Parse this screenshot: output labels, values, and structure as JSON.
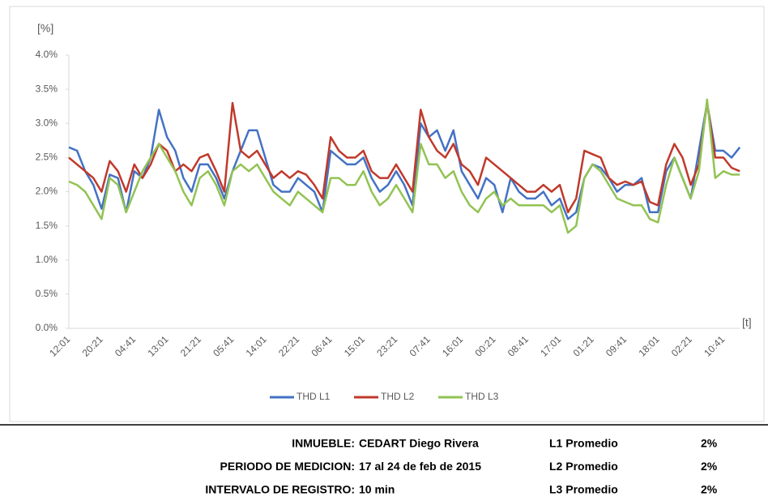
{
  "chart_data": {
    "type": "line",
    "y_label": "[%]",
    "x_label": "[t]",
    "categories": [
      "12:01",
      null,
      null,
      null,
      "20:21",
      null,
      null,
      null,
      "04:41",
      null,
      null,
      null,
      "13:01",
      null,
      null,
      null,
      "21:21",
      null,
      null,
      null,
      "05:41",
      null,
      null,
      null,
      "14:01",
      null,
      null,
      null,
      "22:21",
      null,
      null,
      null,
      "06:41",
      null,
      null,
      null,
      "15:01",
      null,
      null,
      null,
      "23:21",
      null,
      null,
      null,
      "07:41",
      null,
      null,
      null,
      "16:01",
      null,
      null,
      null,
      "00:21",
      null,
      null,
      null,
      "08:41",
      null,
      null,
      null,
      "17:01",
      null,
      null,
      null,
      "01:21",
      null,
      null,
      null,
      "09:41",
      null,
      null,
      null,
      "18:01",
      null,
      null,
      null,
      "02:21",
      null,
      null,
      null,
      "10:41",
      null,
      null
    ],
    "series": [
      {
        "name": "THD L1",
        "color": "#4472c4",
        "values": [
          2.65,
          2.6,
          2.3,
          2.1,
          1.75,
          2.25,
          2.2,
          1.7,
          2.3,
          2.2,
          2.5,
          3.2,
          2.8,
          2.6,
          2.2,
          2.0,
          2.4,
          2.4,
          2.2,
          1.9,
          2.3,
          2.6,
          2.9,
          2.9,
          2.5,
          2.1,
          2.0,
          2.0,
          2.2,
          2.1,
          2.0,
          1.7,
          2.6,
          2.5,
          2.4,
          2.4,
          2.5,
          2.2,
          2.0,
          2.1,
          2.3,
          2.1,
          1.8,
          3.0,
          2.8,
          2.9,
          2.6,
          2.9,
          2.3,
          2.1,
          1.9,
          2.2,
          2.1,
          1.7,
          2.2,
          2.0,
          1.9,
          1.9,
          2.0,
          1.8,
          1.9,
          1.6,
          1.7,
          2.2,
          2.4,
          2.35,
          2.2,
          2.0,
          2.1,
          2.1,
          2.2,
          1.7,
          1.7,
          2.3,
          2.5,
          2.2,
          1.9,
          2.6,
          3.3,
          2.6,
          2.6,
          2.5,
          2.65
        ]
      },
      {
        "name": "THD L2",
        "color": "#c0392b",
        "values": [
          2.5,
          2.4,
          2.3,
          2.2,
          2.0,
          2.45,
          2.3,
          2.0,
          2.4,
          2.2,
          2.4,
          2.7,
          2.6,
          2.3,
          2.4,
          2.3,
          2.5,
          2.55,
          2.3,
          2.0,
          3.3,
          2.6,
          2.5,
          2.6,
          2.4,
          2.2,
          2.3,
          2.2,
          2.3,
          2.25,
          2.1,
          1.9,
          2.8,
          2.6,
          2.5,
          2.5,
          2.6,
          2.3,
          2.2,
          2.2,
          2.4,
          2.2,
          2.0,
          3.2,
          2.8,
          2.6,
          2.5,
          2.7,
          2.4,
          2.3,
          2.1,
          2.5,
          2.4,
          2.3,
          2.2,
          2.1,
          2.0,
          2.0,
          2.1,
          2.0,
          2.1,
          1.7,
          1.9,
          2.6,
          2.55,
          2.5,
          2.2,
          2.1,
          2.15,
          2.1,
          2.15,
          1.85,
          1.8,
          2.4,
          2.7,
          2.5,
          2.1,
          2.4,
          3.3,
          2.5,
          2.5,
          2.35,
          2.3
        ]
      },
      {
        "name": "THD L3",
        "color": "#92c353",
        "values": [
          2.15,
          2.1,
          2.0,
          1.8,
          1.6,
          2.2,
          2.1,
          1.7,
          2.0,
          2.3,
          2.5,
          2.7,
          2.5,
          2.3,
          2.0,
          1.8,
          2.2,
          2.3,
          2.1,
          1.8,
          2.3,
          2.4,
          2.3,
          2.4,
          2.2,
          2.0,
          1.9,
          1.8,
          2.0,
          1.9,
          1.8,
          1.7,
          2.2,
          2.2,
          2.1,
          2.1,
          2.3,
          2.0,
          1.8,
          1.9,
          2.1,
          1.9,
          1.7,
          2.7,
          2.4,
          2.4,
          2.2,
          2.3,
          2.0,
          1.8,
          1.7,
          1.9,
          2.0,
          1.8,
          1.9,
          1.8,
          1.8,
          1.8,
          1.8,
          1.7,
          1.8,
          1.4,
          1.5,
          2.2,
          2.4,
          2.3,
          2.1,
          1.9,
          1.85,
          1.8,
          1.8,
          1.6,
          1.55,
          2.1,
          2.5,
          2.2,
          1.9,
          2.3,
          3.35,
          2.2,
          2.3,
          2.25,
          2.25
        ]
      }
    ],
    "ylim": [
      0,
      4
    ],
    "yticks": [
      {
        "value": 0,
        "label": "0.0%"
      },
      {
        "value": 0.5,
        "label": "0.5%"
      },
      {
        "value": 1,
        "label": "1.0%"
      },
      {
        "value": 1.5,
        "label": "1.5%"
      },
      {
        "value": 2,
        "label": "2.0%"
      },
      {
        "value": 2.5,
        "label": "2.5%"
      },
      {
        "value": 3,
        "label": "3.0%"
      },
      {
        "value": 3.5,
        "label": "3.5%"
      },
      {
        "value": 4,
        "label": "4.0%"
      }
    ],
    "legend": "bottom"
  },
  "info": {
    "rows": [
      {
        "label": "INMUEBLE:",
        "value": "CEDART Diego Rivera",
        "metric": "L1 Promedio",
        "metric_value": "2%"
      },
      {
        "label": "PERIODO DE MEDICION:",
        "value": "17 al 24 de feb de 2015",
        "metric": "L2 Promedio",
        "metric_value": "2%"
      },
      {
        "label": "INTERVALO DE REGISTRO:",
        "value": "10 min",
        "metric": "L3 Promedio",
        "metric_value": "2%"
      }
    ]
  }
}
